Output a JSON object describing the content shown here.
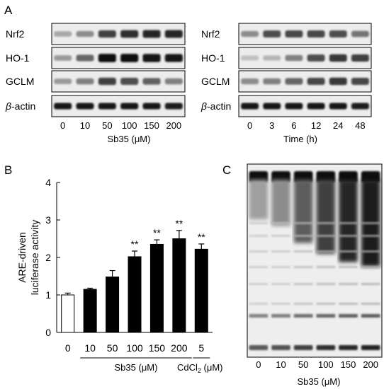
{
  "panel_labels": {
    "a": "A",
    "b": "B",
    "c": "C"
  },
  "panelA_left": {
    "rows": [
      "Nrf2",
      "HO-1",
      "GCLM",
      "β-actin"
    ],
    "lane_labels": [
      "0",
      "10",
      "50",
      "100",
      "150",
      "200"
    ],
    "xlabel": "Sb35 (μM)",
    "band_intensity": {
      "Nrf2": [
        0.35,
        0.45,
        0.75,
        0.82,
        0.85,
        0.85
      ],
      "HO-1": [
        0.4,
        0.6,
        0.95,
        0.95,
        0.92,
        0.9
      ],
      "GCLM": [
        0.4,
        0.5,
        0.75,
        0.7,
        0.62,
        0.5
      ],
      "β-actin": [
        0.9,
        0.9,
        0.9,
        0.9,
        0.9,
        0.88
      ]
    }
  },
  "panelA_right": {
    "rows": [
      "Nrf2",
      "HO-1",
      "GCLM",
      "β-actin"
    ],
    "lane_labels": [
      "0",
      "3",
      "6",
      "12",
      "24",
      "48"
    ],
    "xlabel": "Time (h)",
    "band_intensity": {
      "Nrf2": [
        0.45,
        0.7,
        0.72,
        0.72,
        0.7,
        0.55
      ],
      "HO-1": [
        0.25,
        0.3,
        0.5,
        0.7,
        0.78,
        0.75
      ],
      "GCLM": [
        0.45,
        0.5,
        0.6,
        0.72,
        0.78,
        0.72
      ],
      "β-actin": [
        0.9,
        0.9,
        0.9,
        0.9,
        0.9,
        0.88
      ]
    }
  },
  "chart_data": {
    "type": "bar",
    "ylabel_lines": [
      "ARE-driven",
      "luciferase activity"
    ],
    "ylim": [
      0,
      4
    ],
    "yticks": [
      "0",
      "1",
      "2",
      "3",
      "4"
    ],
    "categories": [
      "0",
      "10",
      "50",
      "100",
      "150",
      "200",
      "5"
    ],
    "values": [
      1.0,
      1.15,
      1.48,
      2.02,
      2.35,
      2.5,
      2.22
    ],
    "errors": [
      0.05,
      0.03,
      0.17,
      0.15,
      0.12,
      0.22,
      0.14
    ],
    "fills": [
      "white",
      "black",
      "black",
      "black",
      "black",
      "black",
      "black"
    ],
    "significance": [
      "",
      "",
      "",
      "**",
      "**",
      "**",
      "**"
    ],
    "group_labels": {
      "sb35": "Sb35 (μM)",
      "cdcl2_main": "CdCl",
      "cdcl2_sub": "2",
      "cdcl2_unit": " (μM)"
    },
    "grid": false
  },
  "panelC": {
    "lane_labels": [
      "0",
      "10",
      "50",
      "100",
      "150",
      "200"
    ],
    "xlabel": "Sb35 (μM)",
    "smear_intensity": [
      0.18,
      0.28,
      0.55,
      0.72,
      0.85,
      0.92
    ]
  }
}
